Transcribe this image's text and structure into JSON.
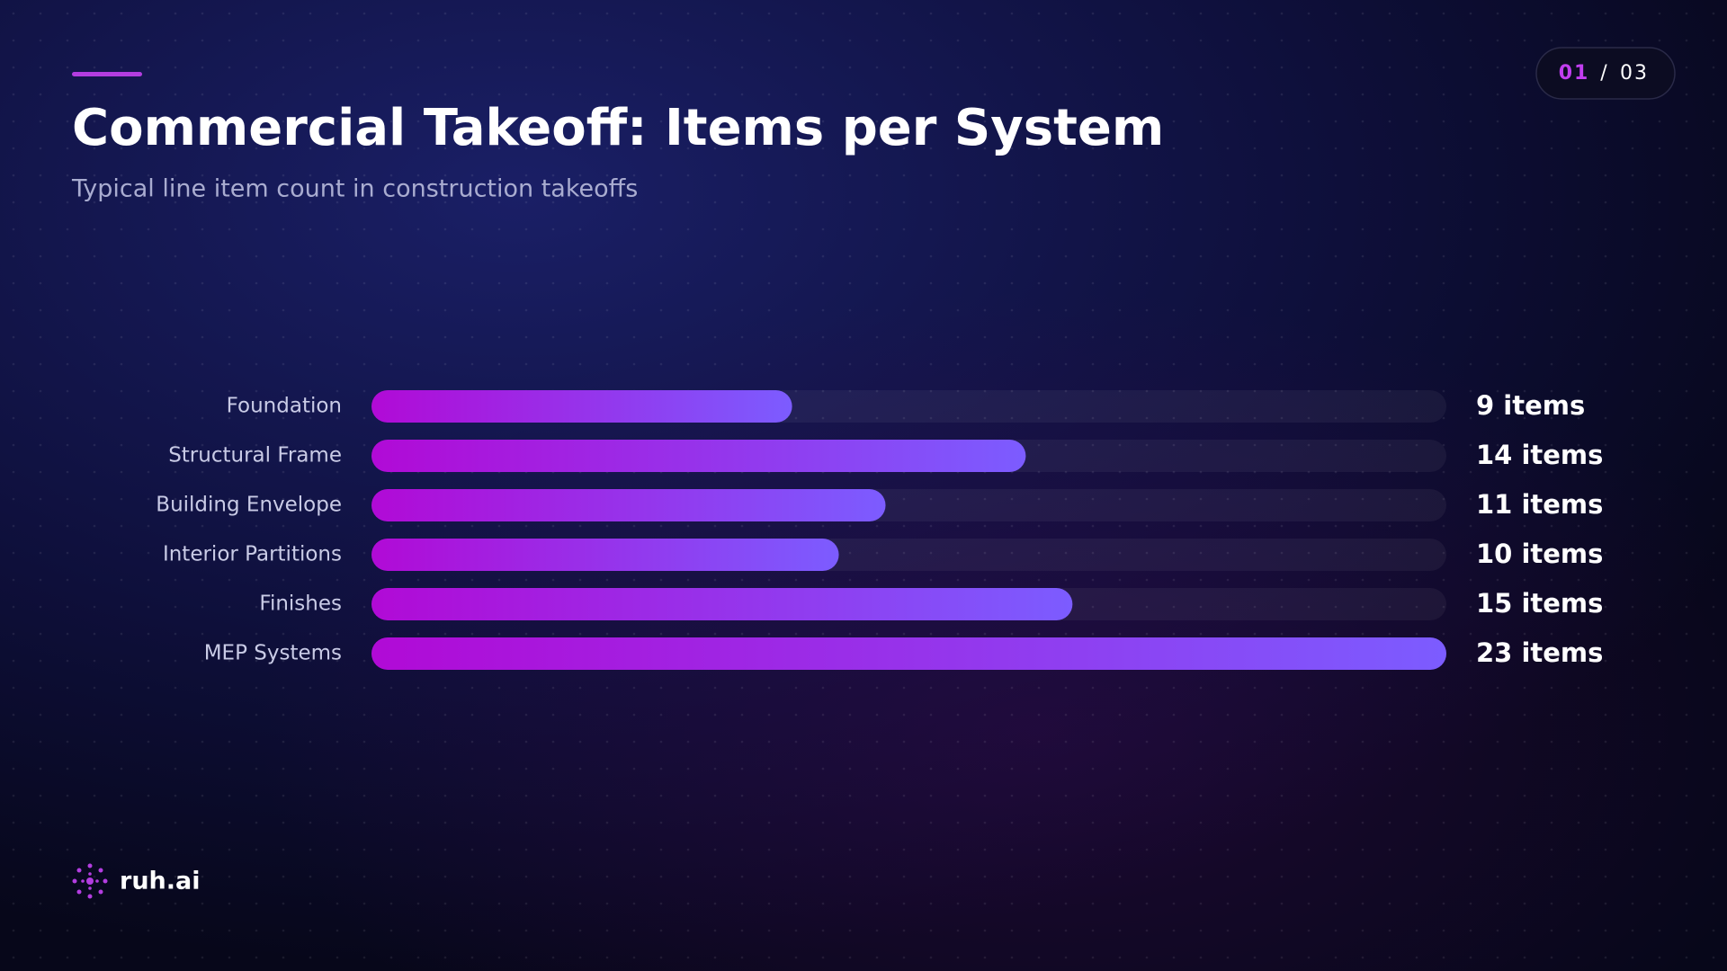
{
  "chart_data": {
    "type": "hbar",
    "title": "Commercial Takeoff: Items per System",
    "subtitle": "Typical line item count in construction takeoffs",
    "categories": [
      "Foundation",
      "Structural Frame",
      "Building Envelope",
      "Interior Partitions",
      "Finishes",
      "MEP Systems"
    ],
    "values": [
      9,
      14,
      11,
      10,
      15,
      23
    ],
    "value_labels": [
      "9 items",
      "14 items",
      "11 items",
      "10 items",
      "15 items",
      "23 items"
    ],
    "xlim": [
      0,
      23
    ],
    "gradient": [
      "#b10ad6",
      "#7c5cff"
    ]
  },
  "page_indicator": {
    "current": "01",
    "separator": "/",
    "total": "03"
  },
  "brand": "ruh.ai"
}
